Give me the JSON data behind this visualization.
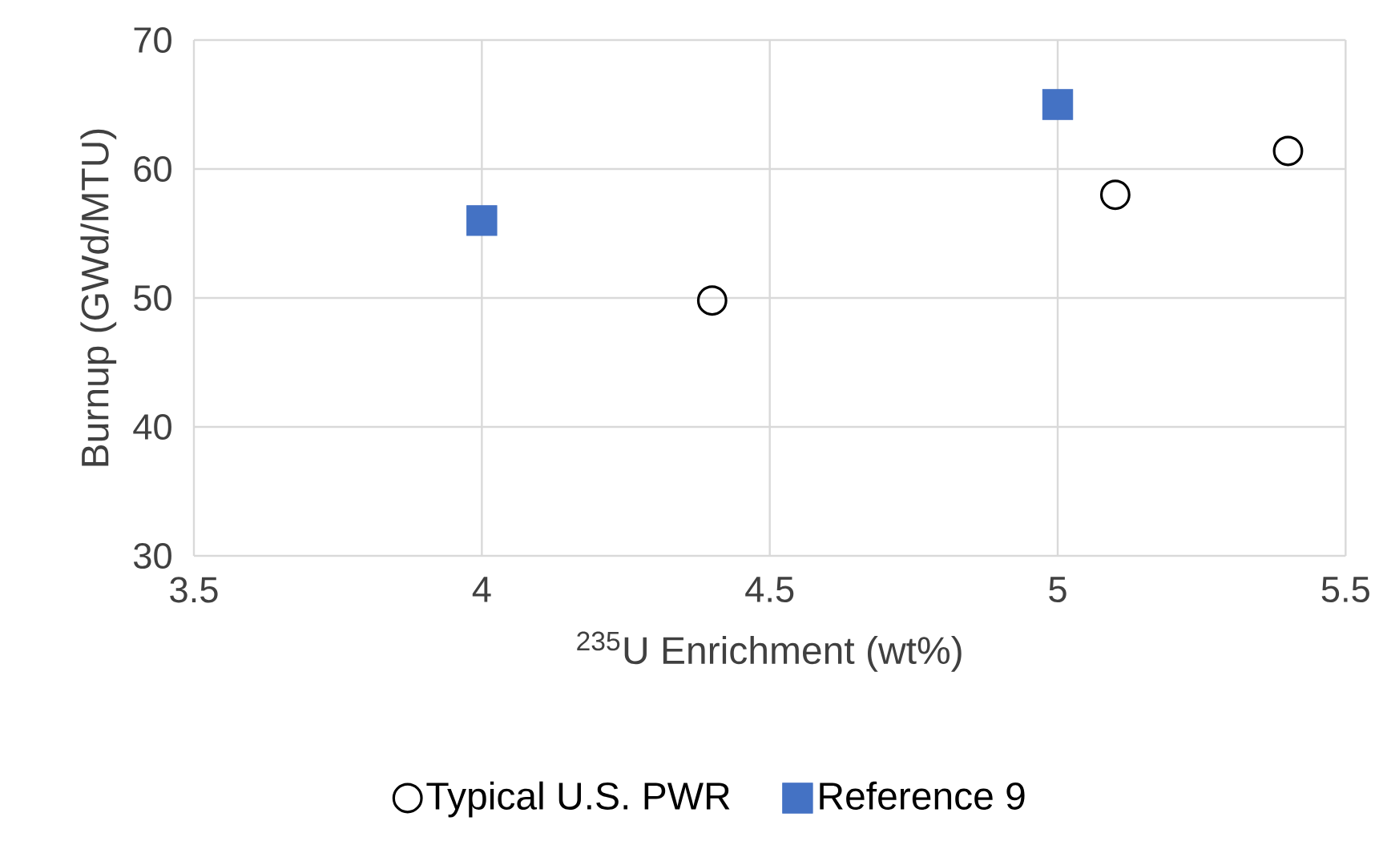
{
  "chart_data": {
    "type": "scatter",
    "xlabel": "$^{235}$U Enrichment (wt%)",
    "ylabel": "Burnup (GWd/MTU)",
    "xlim": [
      3.5,
      5.5
    ],
    "ylim": [
      30,
      70
    ],
    "xticks": [
      3.5,
      4,
      4.5,
      5,
      5.5
    ],
    "yticks": [
      30,
      40,
      50,
      60,
      70
    ],
    "grid": true,
    "legend": "bottom",
    "series": [
      {
        "name": "Typical U.S. PWR",
        "color": "#000000",
        "marker": "circle",
        "x": [
          4.4,
          5.1,
          5.4
        ],
        "values": [
          49.8,
          58,
          61.4
        ]
      },
      {
        "name": "Reference 9",
        "color": "#4472c4",
        "marker": "square",
        "x": [
          4,
          5
        ],
        "values": [
          56,
          65
        ]
      }
    ]
  }
}
